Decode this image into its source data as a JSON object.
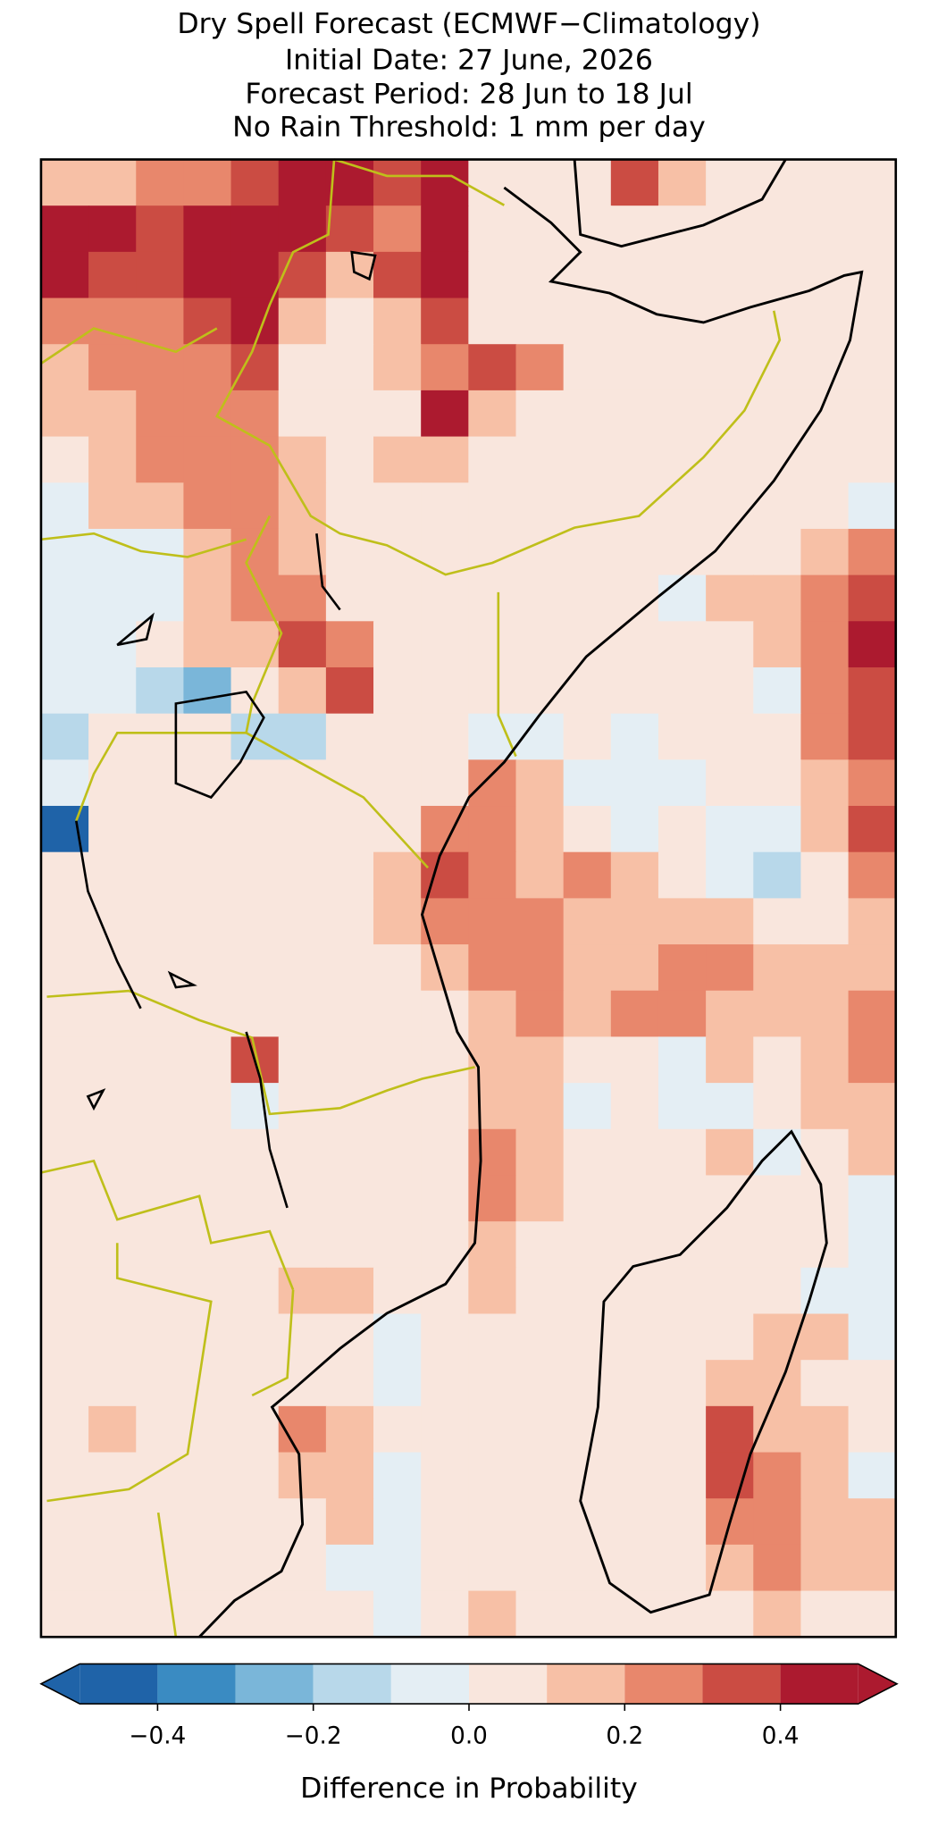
{
  "chart_data": {
    "type": "gridmap",
    "title": [
      "Dry Spell Forecast (ECMWF−Climatology)",
      "Initial Date: 27 June, 2026",
      "Forecast Period: 28 Jun to 18 Jul",
      "No Rain Threshold: 1 mm per day"
    ],
    "colorbar_label": "Difference in Probability",
    "levels": [
      -0.5,
      -0.4,
      -0.3,
      -0.2,
      -0.1,
      0,
      0.1,
      0.2,
      0.3,
      0.4,
      0.5
    ],
    "colors": [
      "#1f63a8",
      "#3a8bc2",
      "#7ab6d9",
      "#b8d8ea",
      "#e4eef4",
      "#f9e6dd",
      "#f7c0a6",
      "#e8876c",
      "#cb4c43",
      "#ac1a2f"
    ],
    "xlim": [
      -0.5,
      0.5
    ],
    "xticks": [
      {
        "value": -0.4,
        "label": "−0.4"
      },
      {
        "value": -0.2,
        "label": "−0.2"
      },
      {
        "value": 0,
        "label": "0.0"
      },
      0.2,
      0.4
    ],
    "values": [
      [
        0.15,
        0.15,
        0.25,
        0.25,
        0.35,
        0.45,
        0.45,
        0.35,
        0.45,
        0.05,
        0.05,
        0.05,
        0.35,
        0.15,
        0.05,
        0.05,
        0.05,
        0.05
      ],
      [
        0.45,
        0.45,
        0.35,
        0.45,
        0.45,
        0.45,
        0.35,
        0.25,
        0.45,
        0.05,
        0.05,
        0.05,
        0.05,
        0.05,
        0.05,
        0.05,
        0.05,
        0.05
      ],
      [
        0.45,
        0.35,
        0.35,
        0.45,
        0.45,
        0.35,
        0.15,
        0.35,
        0.45,
        0.05,
        0.05,
        0.05,
        0.05,
        0.05,
        0.05,
        0.05,
        0.05,
        0.05
      ],
      [
        0.25,
        0.25,
        0.25,
        0.35,
        0.45,
        0.15,
        0.05,
        0.15,
        0.35,
        0.05,
        0.05,
        0.05,
        0.05,
        0.05,
        0.05,
        0.05,
        0.05,
        0.05
      ],
      [
        0.15,
        0.25,
        0.25,
        0.25,
        0.35,
        0.05,
        0.05,
        0.15,
        0.25,
        0.35,
        0.25,
        0.05,
        0.05,
        0.05,
        0.05,
        0.05,
        0.05,
        0.05
      ],
      [
        0.15,
        0.15,
        0.25,
        0.25,
        0.25,
        0.05,
        0.05,
        0.05,
        0.45,
        0.15,
        0.05,
        0.05,
        0.05,
        0.05,
        0.05,
        0.05,
        0.05,
        0.05
      ],
      [
        0.05,
        0.15,
        0.25,
        0.25,
        0.25,
        0.15,
        0.05,
        0.15,
        0.15,
        0.05,
        0.05,
        0.05,
        0.05,
        0.05,
        0.05,
        0.05,
        0.05,
        0.05
      ],
      [
        -0.05,
        0.15,
        0.15,
        0.25,
        0.25,
        0.15,
        0.05,
        0.05,
        0.05,
        0.05,
        0.05,
        0.05,
        0.05,
        0.05,
        0.05,
        0.05,
        0.05,
        -0.05
      ],
      [
        -0.05,
        -0.05,
        -0.05,
        0.15,
        0.25,
        0.15,
        0.05,
        0.05,
        0.05,
        0.05,
        0.05,
        0.05,
        0.05,
        0.05,
        0.05,
        0.05,
        0.15,
        0.25
      ],
      [
        -0.05,
        -0.05,
        -0.05,
        0.15,
        0.25,
        0.25,
        0.05,
        0.05,
        0.05,
        0.05,
        0.05,
        0.05,
        0.05,
        -0.05,
        0.15,
        0.15,
        0.25,
        0.35
      ],
      [
        -0.05,
        -0.05,
        0.05,
        0.15,
        0.15,
        0.35,
        0.25,
        0.05,
        0.05,
        0.05,
        0.05,
        0.05,
        0.05,
        0.05,
        0.05,
        0.15,
        0.25,
        0.45
      ],
      [
        -0.05,
        -0.05,
        -0.15,
        -0.25,
        0.05,
        0.15,
        0.35,
        0.05,
        0.05,
        0.05,
        0.05,
        0.05,
        0.05,
        0.05,
        0.05,
        -0.05,
        0.25,
        0.35
      ],
      [
        -0.15,
        0.05,
        0.05,
        0.05,
        -0.15,
        -0.15,
        0.05,
        0.05,
        0.05,
        -0.05,
        -0.05,
        0.05,
        -0.05,
        0.05,
        0.05,
        0.05,
        0.25,
        0.35
      ],
      [
        -0.05,
        0.05,
        0.05,
        0.05,
        0.05,
        0.05,
        0.05,
        0.05,
        0.05,
        0.25,
        0.15,
        -0.05,
        -0.05,
        -0.05,
        0.05,
        0.05,
        0.15,
        0.25
      ],
      [
        -0.45,
        0.05,
        0.05,
        0.05,
        0.05,
        0.05,
        0.05,
        0.05,
        0.25,
        0.25,
        0.15,
        0.05,
        -0.05,
        0.05,
        -0.05,
        -0.05,
        0.15,
        0.35
      ],
      [
        0.05,
        0.05,
        0.05,
        0.05,
        0.05,
        0.05,
        0.05,
        0.15,
        0.35,
        0.25,
        0.15,
        0.25,
        0.15,
        0.05,
        -0.05,
        -0.15,
        0.05,
        0.25
      ],
      [
        0.05,
        0.05,
        0.05,
        0.05,
        0.05,
        0.05,
        0.05,
        0.15,
        0.25,
        0.25,
        0.25,
        0.15,
        0.15,
        0.15,
        0.15,
        0.05,
        0.05,
        0.15
      ],
      [
        0.05,
        0.05,
        0.05,
        0.05,
        0.05,
        0.05,
        0.05,
        0.05,
        0.15,
        0.25,
        0.25,
        0.15,
        0.15,
        0.25,
        0.25,
        0.15,
        0.15,
        0.15
      ],
      [
        0.05,
        0.05,
        0.05,
        0.05,
        0.05,
        0.05,
        0.05,
        0.05,
        0.05,
        0.15,
        0.25,
        0.15,
        0.25,
        0.25,
        0.15,
        0.15,
        0.15,
        0.25
      ],
      [
        0.05,
        0.05,
        0.05,
        0.05,
        0.35,
        0.05,
        0.05,
        0.05,
        0.05,
        0.15,
        0.15,
        0.05,
        0.05,
        -0.05,
        0.15,
        0.05,
        0.15,
        0.25
      ],
      [
        0.05,
        0.05,
        0.05,
        0.05,
        -0.05,
        0.05,
        0.05,
        0.05,
        0.05,
        0.15,
        0.15,
        -0.05,
        0.05,
        -0.05,
        -0.05,
        0.05,
        0.15,
        0.15
      ],
      [
        0.05,
        0.05,
        0.05,
        0.05,
        0.05,
        0.05,
        0.05,
        0.05,
        0.05,
        0.25,
        0.15,
        0.05,
        0.05,
        0.05,
        0.15,
        -0.05,
        0.05,
        0.15
      ],
      [
        0.05,
        0.05,
        0.05,
        0.05,
        0.05,
        0.05,
        0.05,
        0.05,
        0.05,
        0.25,
        0.15,
        0.05,
        0.05,
        0.05,
        0.05,
        0.05,
        0.05,
        -0.05
      ],
      [
        0.05,
        0.05,
        0.05,
        0.05,
        0.05,
        0.05,
        0.05,
        0.05,
        0.05,
        0.15,
        0.05,
        0.05,
        0.05,
        0.05,
        0.05,
        0.05,
        0.05,
        -0.05
      ],
      [
        0.05,
        0.05,
        0.05,
        0.05,
        0.05,
        0.15,
        0.15,
        0.05,
        0.05,
        0.15,
        0.05,
        0.05,
        0.05,
        0.05,
        0.05,
        0.05,
        -0.05,
        -0.05
      ],
      [
        0.05,
        0.05,
        0.05,
        0.05,
        0.05,
        0.05,
        0.05,
        -0.05,
        0.05,
        0.05,
        0.05,
        0.05,
        0.05,
        0.05,
        0.05,
        0.15,
        0.15,
        -0.05
      ],
      [
        0.05,
        0.05,
        0.05,
        0.05,
        0.05,
        0.05,
        0.05,
        -0.05,
        0.05,
        0.05,
        0.05,
        0.05,
        0.05,
        0.05,
        0.15,
        0.15,
        0.05,
        0.05
      ],
      [
        0.05,
        0.15,
        0.05,
        0.05,
        0.05,
        0.25,
        0.15,
        0.05,
        0.05,
        0.05,
        0.05,
        0.05,
        0.05,
        0.05,
        0.35,
        0.15,
        0.15,
        0.05
      ],
      [
        0.05,
        0.05,
        0.05,
        0.05,
        0.05,
        0.15,
        0.15,
        -0.05,
        0.05,
        0.05,
        0.05,
        0.05,
        0.05,
        0.05,
        0.35,
        0.25,
        0.15,
        -0.05
      ],
      [
        0.05,
        0.05,
        0.05,
        0.05,
        0.05,
        0.05,
        0.15,
        -0.05,
        0.05,
        0.05,
        0.05,
        0.05,
        0.05,
        0.05,
        0.25,
        0.25,
        0.15,
        0.15
      ],
      [
        0.05,
        0.05,
        0.05,
        0.05,
        0.05,
        0.05,
        -0.05,
        -0.05,
        0.05,
        0.05,
        0.05,
        0.05,
        0.05,
        0.05,
        0.15,
        0.25,
        0.15,
        0.15
      ],
      [
        0.05,
        0.05,
        0.05,
        0.05,
        0.05,
        0.05,
        0.05,
        -0.05,
        0.05,
        0.15,
        0.05,
        0.05,
        0.05,
        0.05,
        0.05,
        0.15,
        0.05,
        0.05
      ]
    ]
  }
}
